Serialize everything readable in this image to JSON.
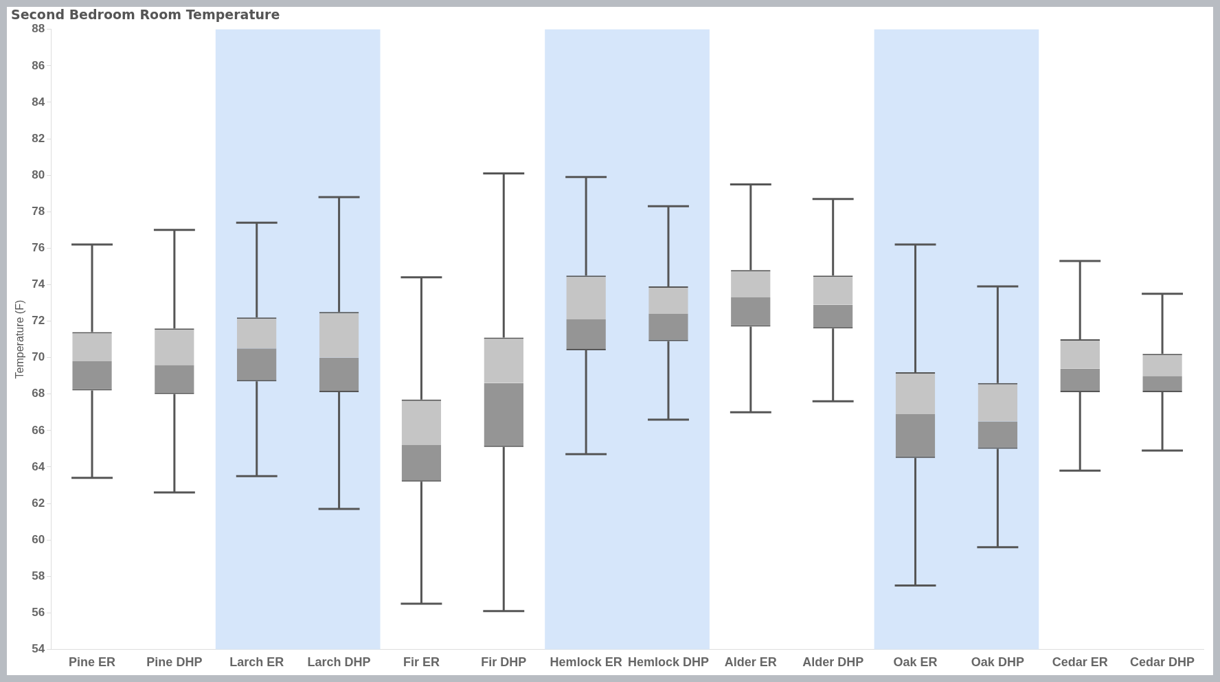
{
  "chart_data": {
    "type": "box",
    "title": "Second Bedroom Room Temperature",
    "ylabel": "Temperature (F)",
    "categories": [
      "Pine ER",
      "Pine DHP",
      "Larch ER",
      "Larch DHP",
      "Fir ER",
      "Fir DHP",
      "Hemlock ER",
      "Hemlock DHP",
      "Alder ER",
      "Alder DHP",
      "Oak ER",
      "Oak DHP",
      "Cedar ER",
      "Cedar DHP"
    ],
    "series": [
      {
        "color": "#959595",
        "boxes": [
          {
            "low": 63.4,
            "q1": 68.2,
            "median": 69.8,
            "q3": 71.4,
            "high": 76.2
          },
          {
            "low": 62.6,
            "q1": 68.0,
            "median": 69.6,
            "q3": 71.6,
            "high": 77.0
          },
          {
            "low": 63.5,
            "q1": 68.7,
            "median": 70.5,
            "q3": 72.2,
            "high": 77.4
          },
          {
            "low": 61.7,
            "q1": 68.1,
            "median": 70.0,
            "q3": 72.5,
            "high": 78.8
          },
          {
            "low": 56.5,
            "q1": 63.2,
            "median": 65.2,
            "q3": 67.7,
            "high": 74.4
          },
          {
            "low": 56.1,
            "q1": 65.1,
            "median": 68.6,
            "q3": 71.1,
            "high": 80.1
          },
          {
            "low": 64.7,
            "q1": 70.4,
            "median": 72.1,
            "q3": 74.5,
            "high": 79.9
          },
          {
            "low": 66.6,
            "q1": 70.9,
            "median": 72.4,
            "q3": 73.9,
            "high": 78.3
          },
          {
            "low": 67.0,
            "q1": 71.7,
            "median": 73.3,
            "q3": 74.8,
            "high": 79.5
          },
          {
            "low": 67.6,
            "q1": 71.6,
            "median": 72.9,
            "q3": 74.5,
            "high": 78.7
          },
          {
            "low": 57.5,
            "q1": 64.5,
            "median": 66.9,
            "q3": 69.2,
            "high": 76.2
          },
          {
            "low": 59.6,
            "q1": 65.0,
            "median": 66.5,
            "q3": 68.6,
            "high": 73.9
          },
          {
            "low": 63.8,
            "q1": 68.1,
            "median": 69.4,
            "q3": 71.0,
            "high": 75.3
          },
          {
            "low": 64.9,
            "q1": 68.1,
            "median": 69.0,
            "q3": 70.2,
            "high": 73.5
          }
        ]
      }
    ],
    "ylim": [
      54,
      88
    ],
    "yticks": [
      54,
      56,
      58,
      60,
      62,
      64,
      66,
      68,
      70,
      72,
      74,
      76,
      78,
      80,
      82,
      84,
      86,
      88
    ],
    "grid": false,
    "bands": [
      {
        "axis": "x",
        "from": "Larch ER",
        "to": "Larch DHP",
        "color": "#d6e6fa"
      },
      {
        "axis": "x",
        "from": "Hemlock ER",
        "to": "Hemlock DHP",
        "color": "#d6e6fa"
      },
      {
        "axis": "x",
        "from": "Oak ER",
        "to": "Oak DHP",
        "color": "#d6e6fa"
      }
    ]
  }
}
